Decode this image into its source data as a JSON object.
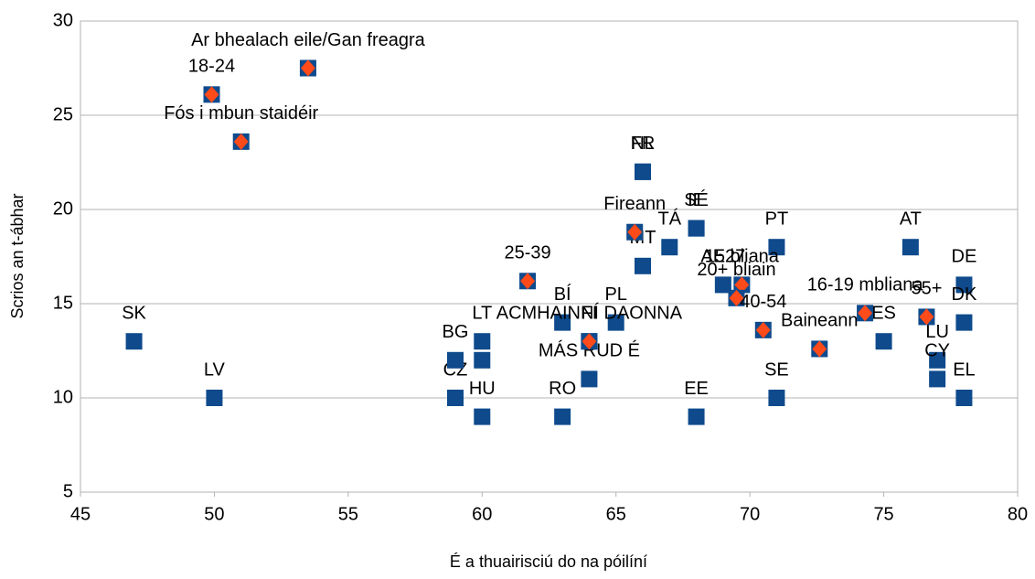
{
  "chart_data": {
    "type": "scatter",
    "x_label": "É a thuairisciú do na póilíní",
    "y_label": "Scrios an t-ábhar",
    "xlim": [
      45,
      80
    ],
    "xticks": [
      45,
      50,
      55,
      60,
      65,
      70,
      75,
      80
    ],
    "ylim": [
      5,
      30
    ],
    "yticks": [
      5,
      10,
      15,
      20,
      25,
      30
    ],
    "grid": true,
    "series": [
      {
        "color": "#0e4a8c",
        "marker": "square",
        "labels": [
          "SK",
          "LV",
          "CZ",
          "BG",
          "HU",
          "LT",
          null,
          "RO",
          "BÍ",
          "PL",
          "FI",
          "MÁS RUD É",
          "EE",
          "FR",
          "NL",
          "MT",
          "TÁ",
          "IE",
          "SÉ",
          "AE27",
          "SE",
          "PT",
          "ES",
          "AT",
          "LU",
          "CY",
          "DE",
          "DK",
          "EL"
        ],
        "x": [
          47,
          50,
          59,
          59,
          60,
          60,
          60,
          63,
          63,
          65,
          64,
          64,
          68,
          66,
          66,
          66,
          67,
          68,
          68,
          69,
          71,
          71,
          75,
          76,
          77,
          77,
          78,
          78,
          78
        ],
        "values": [
          13,
          10,
          10,
          12,
          9,
          13,
          12,
          9,
          14,
          14,
          13,
          11,
          9,
          22,
          22,
          17,
          18,
          19,
          19,
          16,
          10,
          18,
          13,
          18,
          12,
          11,
          16,
          14,
          10
        ]
      },
      {
        "color": "#ff4a1a",
        "marker": "diamond",
        "labels": [
          "Ar bhealach eile/Gan freagra",
          "18-24",
          "Fós i mbun staidéir",
          "25-39",
          "Fireann",
          "ACMHAINNÍ DAONNA",
          "15 bliana",
          "20+ bliain",
          "40-54",
          "Baineann",
          "16-19 mbliana",
          "55+"
        ],
        "x": [
          53.5,
          49.9,
          51,
          61.7,
          65.7,
          64,
          69.7,
          69.5,
          70.5,
          72.6,
          74.3,
          76.6
        ],
        "values": [
          27.5,
          26.1,
          23.6,
          16.2,
          18.8,
          13,
          16,
          15.3,
          13.6,
          12.6,
          14.5,
          14.3
        ]
      }
    ]
  }
}
